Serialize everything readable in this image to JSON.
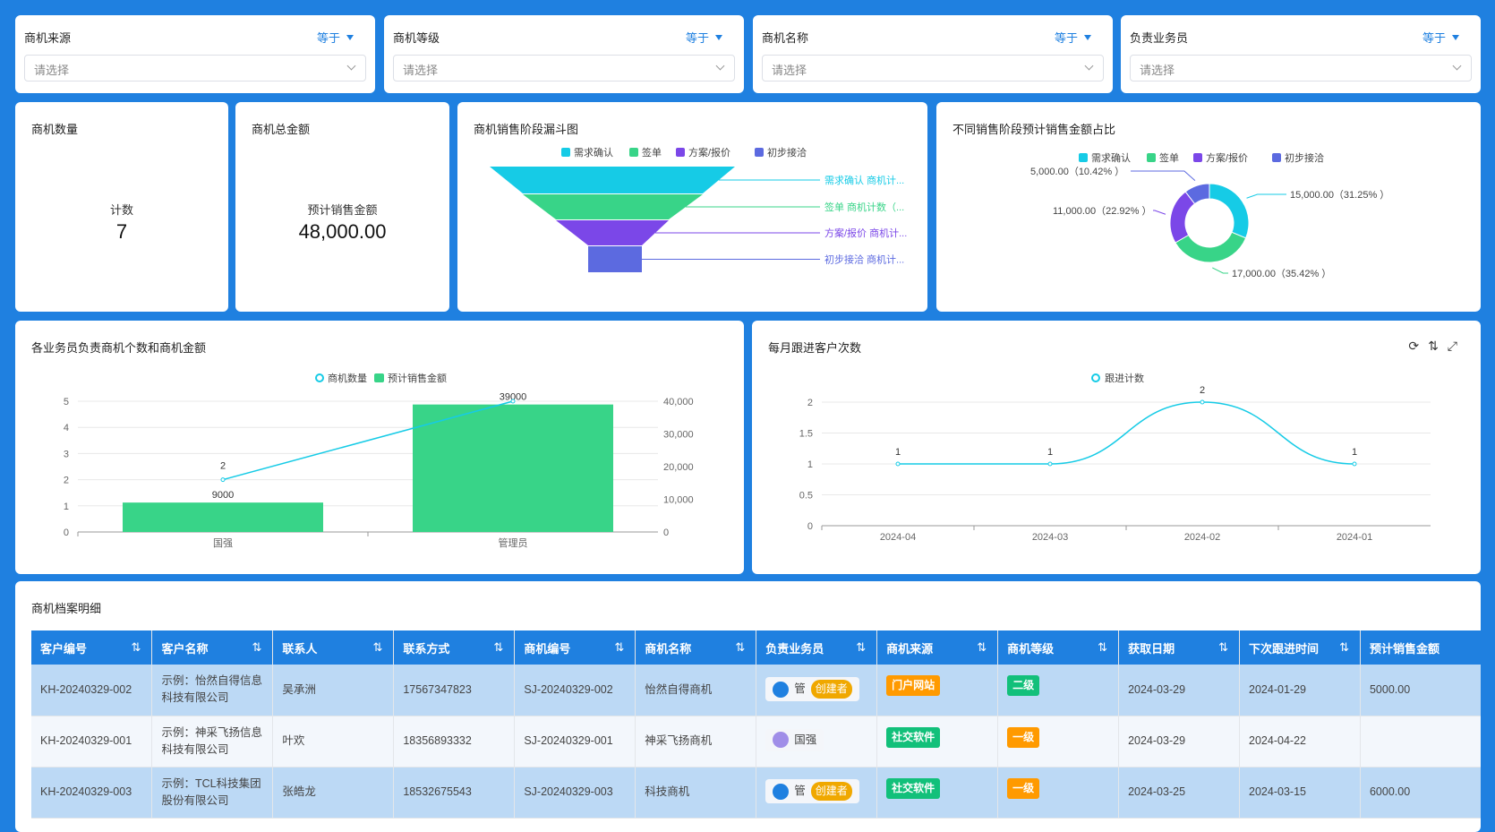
{
  "filters": [
    {
      "label": "商机来源",
      "operator": "等于",
      "placeholder": "请选择"
    },
    {
      "label": "商机等级",
      "operator": "等于",
      "placeholder": "请选择"
    },
    {
      "label": "商机名称",
      "operator": "等于",
      "placeholder": "请选择"
    },
    {
      "label": "负责业务员",
      "operator": "等于",
      "placeholder": "请选择"
    }
  ],
  "kpis": [
    {
      "title": "商机数量",
      "label": "计数",
      "value": "7"
    },
    {
      "title": "商机总金额",
      "label": "预计销售金额",
      "value": "48,000.00"
    }
  ],
  "colors": {
    "cyan": "#16cbe6",
    "green": "#38d488",
    "purple": "#7b47e8",
    "indigo": "#5c6ae0",
    "bg": "#1f80e0"
  },
  "chart_data": [
    {
      "type": "funnel",
      "title": "商机销售阶段漏斗图",
      "legend": [
        "需求确认",
        "签单",
        "方案/报价",
        "初步接洽"
      ],
      "labels": [
        "需求确认 商机计...",
        "签单 商机计数（...",
        "方案/报价 商机计...",
        "初步接洽 商机计..."
      ]
    },
    {
      "type": "pie",
      "title": "不同销售阶段预计销售金额占比",
      "legend": [
        "需求确认",
        "签单",
        "方案/报价",
        "初步接洽"
      ],
      "values": [
        15000,
        17000,
        11000,
        5000
      ],
      "labels": [
        "15,000.00（31.25% ）",
        "17,000.00（35.42% ）",
        "11,000.00（22.92% ）",
        "5,000.00（10.42% ）"
      ]
    },
    {
      "type": "bar",
      "title": "各业务员负责商机个数和商机金额",
      "categories": [
        "国强",
        "管理员"
      ],
      "series": [
        {
          "name": "商机数量",
          "type": "line",
          "axis": "left",
          "values": [
            2,
            5
          ]
        },
        {
          "name": "预计销售金额",
          "type": "bar",
          "axis": "right",
          "values": [
            9000,
            39000
          ]
        }
      ],
      "data_labels": {
        "line": [
          "2",
          ""
        ],
        "bar": [
          "9000",
          "39000"
        ]
      },
      "ylim_left": [
        0,
        5
      ],
      "yticks_left": [
        "0",
        "1",
        "2",
        "3",
        "4",
        "5"
      ],
      "ylim_right": [
        0,
        40000
      ],
      "yticks_right": [
        "0",
        "10,000",
        "20,000",
        "30,000",
        "40,000"
      ]
    },
    {
      "type": "line",
      "title": "每月跟进客户次数",
      "categories": [
        "2024-04",
        "2024-03",
        "2024-02",
        "2024-01"
      ],
      "series": [
        {
          "name": "跟进计数",
          "values": [
            1,
            1,
            2,
            1
          ]
        }
      ],
      "ylim": [
        0,
        2
      ],
      "yticks": [
        "0",
        "0.5",
        "1",
        "1.5",
        "2"
      ]
    }
  ],
  "table": {
    "title": "商机档案明细",
    "columns": [
      "客户编号",
      "客户名称",
      "联系人",
      "联系方式",
      "商机编号",
      "商机名称",
      "负责业务员",
      "商机来源",
      "商机等级",
      "获取日期",
      "下次跟进时间",
      "预计销售金额"
    ],
    "rows": [
      {
        "c": [
          "KH-20240329-002",
          "示例：怡然自得信息科技有限公司",
          "吴承洲",
          "17567347823",
          "SJ-20240329-002",
          "怡然自得商机"
        ],
        "user": "管",
        "creator": "创建者",
        "source": "门户网站",
        "source_color": "#ff9a00",
        "level": "二级",
        "level_color": "#12c07a",
        "date": "2024-03-29",
        "next": "2024-01-29",
        "amount": "5000.00"
      },
      {
        "c": [
          "KH-20240329-001",
          "示例：神采飞扬信息科技有限公司",
          "叶欢",
          "18356893332",
          "SJ-20240329-001",
          "神采飞扬商机"
        ],
        "user": "国强",
        "creator": "",
        "source": "社交软件",
        "source_color": "#12c07a",
        "level": "一级",
        "level_color": "#ff9a00",
        "date": "2024-03-29",
        "next": "2024-04-22",
        "amount": ""
      },
      {
        "c": [
          "KH-20240329-003",
          "示例：TCL科技集团股份有限公司",
          "张皓龙",
          "18532675543",
          "SJ-20240329-003",
          "科技商机"
        ],
        "user": "管",
        "creator": "创建者",
        "source": "社交软件",
        "source_color": "#12c07a",
        "level": "一级",
        "level_color": "#ff9a00",
        "date": "2024-03-25",
        "next": "2024-03-15",
        "amount": "6000.00"
      }
    ]
  }
}
